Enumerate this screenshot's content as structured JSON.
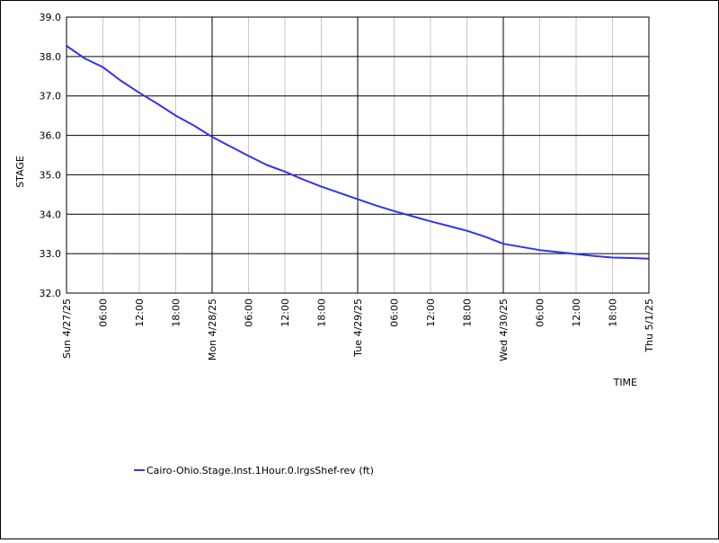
{
  "chart_data": {
    "type": "line",
    "xlabel": "TIME",
    "ylabel": "STAGE",
    "ylim": [
      32.0,
      39.0
    ],
    "yticks": [
      "32.0",
      "33.0",
      "34.0",
      "35.0",
      "36.0",
      "37.0",
      "38.0",
      "39.0"
    ],
    "xticks": [
      "Sun 4/27/25",
      "06:00",
      "12:00",
      "18:00",
      "Mon 4/28/25",
      "06:00",
      "12:00",
      "18:00",
      "Tue 4/29/25",
      "06:00",
      "12:00",
      "18:00",
      "Wed 4/30/25",
      "06:00",
      "12:00",
      "18:00",
      "Thu 5/1/25"
    ],
    "grid": true,
    "legend_position": "bottom",
    "series": [
      {
        "name": "Cairo-Ohio.Stage.Inst.1Hour.0.lrgsShef-rev (ft)",
        "color": "#3333ee",
        "points": [
          [
            "2025-04-27 00:00",
            38.27
          ],
          [
            "2025-04-27 03:00",
            37.95
          ],
          [
            "2025-04-27 06:00",
            37.73
          ],
          [
            "2025-04-27 09:00",
            37.38
          ],
          [
            "2025-04-27 12:00",
            37.08
          ],
          [
            "2025-04-27 15:00",
            36.8
          ],
          [
            "2025-04-27 18:00",
            36.5
          ],
          [
            "2025-04-27 21:00",
            36.25
          ],
          [
            "2025-04-28 00:00",
            35.96
          ],
          [
            "2025-04-28 03:00",
            35.72
          ],
          [
            "2025-04-28 06:00",
            35.48
          ],
          [
            "2025-04-28 09:00",
            35.25
          ],
          [
            "2025-04-28 12:00",
            35.08
          ],
          [
            "2025-04-28 15:00",
            34.88
          ],
          [
            "2025-04-28 18:00",
            34.7
          ],
          [
            "2025-04-28 21:00",
            34.54
          ],
          [
            "2025-04-29 00:00",
            34.38
          ],
          [
            "2025-04-29 03:00",
            34.22
          ],
          [
            "2025-04-29 06:00",
            34.08
          ],
          [
            "2025-04-29 09:00",
            33.95
          ],
          [
            "2025-04-29 12:00",
            33.82
          ],
          [
            "2025-04-29 15:00",
            33.7
          ],
          [
            "2025-04-29 18:00",
            33.58
          ],
          [
            "2025-04-29 21:00",
            33.43
          ],
          [
            "2025-04-30 00:00",
            33.25
          ],
          [
            "2025-04-30 03:00",
            33.17
          ],
          [
            "2025-04-30 06:00",
            33.09
          ],
          [
            "2025-04-30 09:00",
            33.04
          ],
          [
            "2025-04-30 12:00",
            32.99
          ],
          [
            "2025-04-30 15:00",
            32.94
          ],
          [
            "2025-04-30 18:00",
            32.9
          ],
          [
            "2025-04-30 21:00",
            32.89
          ],
          [
            "2025-05-01 00:00",
            32.87
          ]
        ]
      }
    ]
  }
}
